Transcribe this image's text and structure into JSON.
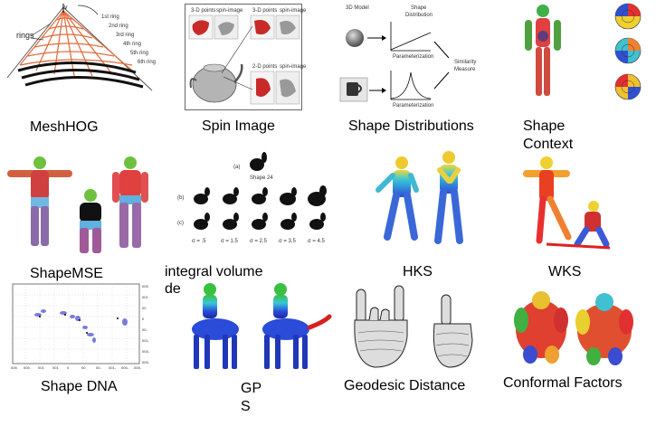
{
  "panels": [
    {
      "label": "MeshHOG"
    },
    {
      "label": "Spin Image"
    },
    {
      "label": "Shape Distributions"
    },
    {
      "label_line1": "Shape",
      "label_line2": "Context"
    },
    {
      "label": "ShapeMSE"
    },
    {
      "label_line1": "integral volume",
      "label_line2": "de"
    },
    {
      "label": "HKS"
    },
    {
      "label": "WKS"
    },
    {
      "label": "Shape DNA"
    },
    {
      "label_line1": "GP",
      "label_line2": "S"
    },
    {
      "label": "Geodesic Distance"
    },
    {
      "label": "Conformal Factors"
    }
  ],
  "meshhog_diagram": {
    "rings_label": "rings",
    "v_label": "v",
    "ring_labels": [
      "1st ring",
      "2nd ring",
      "3rd ring",
      "4th ring",
      "5th ring",
      "6th ring"
    ]
  },
  "spin_diagram": {
    "panel_titles": [
      "3-D points",
      "spin-image",
      "3-D points",
      "spin-image",
      "2-D points",
      "spin-image"
    ]
  },
  "shape_dist_diagram": {
    "model_label": "3D Model",
    "dist_label_line1": "Shape",
    "dist_label_line2": "Distribution",
    "param_label_top": "Parameterization",
    "param_label_bottom": "Parameterization",
    "measure_line1": "Similarity",
    "measure_line2": "Measure"
  },
  "integral_volume_diagram": {
    "row_a": "(a)",
    "row_b": "(b)",
    "row_c": "(c)",
    "shape_caption": "Shape 24",
    "sigmas": [
      "σ = .5",
      "σ = 1.5",
      "σ = 2.5",
      "σ = 3.5",
      "σ = 4.5"
    ]
  },
  "shape_dna_plot": {
    "x_ticks": [
      "005",
      "005",
      "001",
      "001",
      "0",
      "00",
      "00-",
      "001-",
      "005-",
      "005-"
    ],
    "y_ticks": [
      "005",
      "001",
      "00",
      "0",
      "00-",
      "001-",
      "005-",
      "005-"
    ]
  },
  "colors": {
    "mesh_orange": "#e06a3a",
    "heat_red": "#d62020",
    "heat_blue": "#2a4cd8",
    "heat_cyan": "#38c7d8",
    "heat_green": "#38c040",
    "heat_yellow": "#f0d83a"
  }
}
